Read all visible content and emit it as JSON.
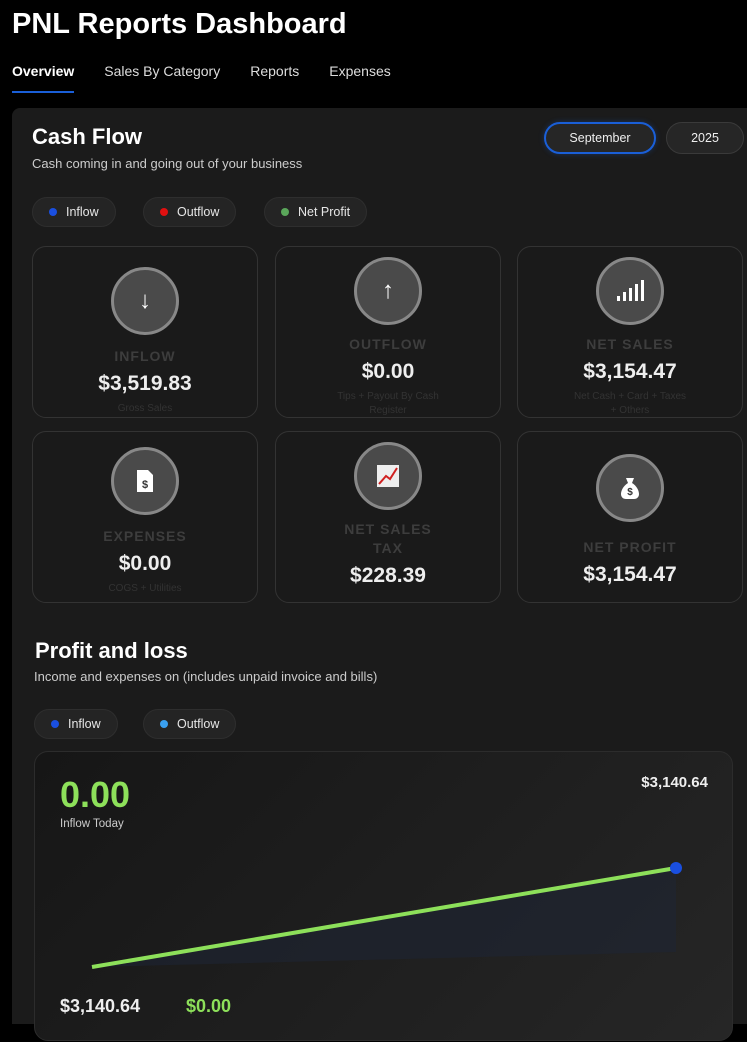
{
  "header": {
    "title": "PNL Reports Dashboard"
  },
  "tabs": [
    {
      "label": "Overview",
      "active": true
    },
    {
      "label": "Sales By Category"
    },
    {
      "label": "Reports"
    },
    {
      "label": "Expenses"
    }
  ],
  "cash_flow": {
    "title": "Cash Flow",
    "subtitle": "Cash coming in and going out of your business",
    "month": "September",
    "year": "2025",
    "legend": [
      {
        "label": "Inflow",
        "color": "#1a4fe0"
      },
      {
        "label": "Outflow",
        "color": "#e01010"
      },
      {
        "label": "Net Profit",
        "color": "#5aa65a"
      }
    ],
    "cards": [
      {
        "icon": "arrow-down-icon",
        "label": "INFLOW",
        "value": "$3,519.83",
        "note": "Gross Sales"
      },
      {
        "icon": "arrow-up-icon",
        "label": "OUTFLOW",
        "value": "$0.00",
        "note": "Tips + Payout By Cash Register"
      },
      {
        "icon": "signal-bars-icon",
        "label": "NET SALES",
        "value": "$3,154.47",
        "note": "Net Cash + Card + Taxes + Others"
      },
      {
        "icon": "invoice-dollar-icon",
        "label": "EXPENSES",
        "value": "$0.00",
        "note": "COGS + Utilities"
      },
      {
        "icon": "chart-increasing-icon",
        "label": "NET SALES TAX",
        "value": "$228.39",
        "note": ""
      },
      {
        "icon": "money-bag-icon",
        "label": "NET PROFIT",
        "value": "$3,154.47",
        "note": ""
      }
    ]
  },
  "pnl": {
    "title": "Profit and loss",
    "subtitle": "Income and expenses on (includes unpaid invoice and bills)",
    "legend": [
      {
        "label": "Inflow",
        "color": "#1a4fe0"
      },
      {
        "label": "Outflow",
        "color": "#3aa0f0"
      }
    ],
    "big_value": "0.00",
    "big_label": "Inflow Today",
    "top_right": "$3,140.64",
    "bottom_left": "$3,140.64",
    "bottom_green": "$0.00",
    "line_color": "#8de05a"
  }
}
